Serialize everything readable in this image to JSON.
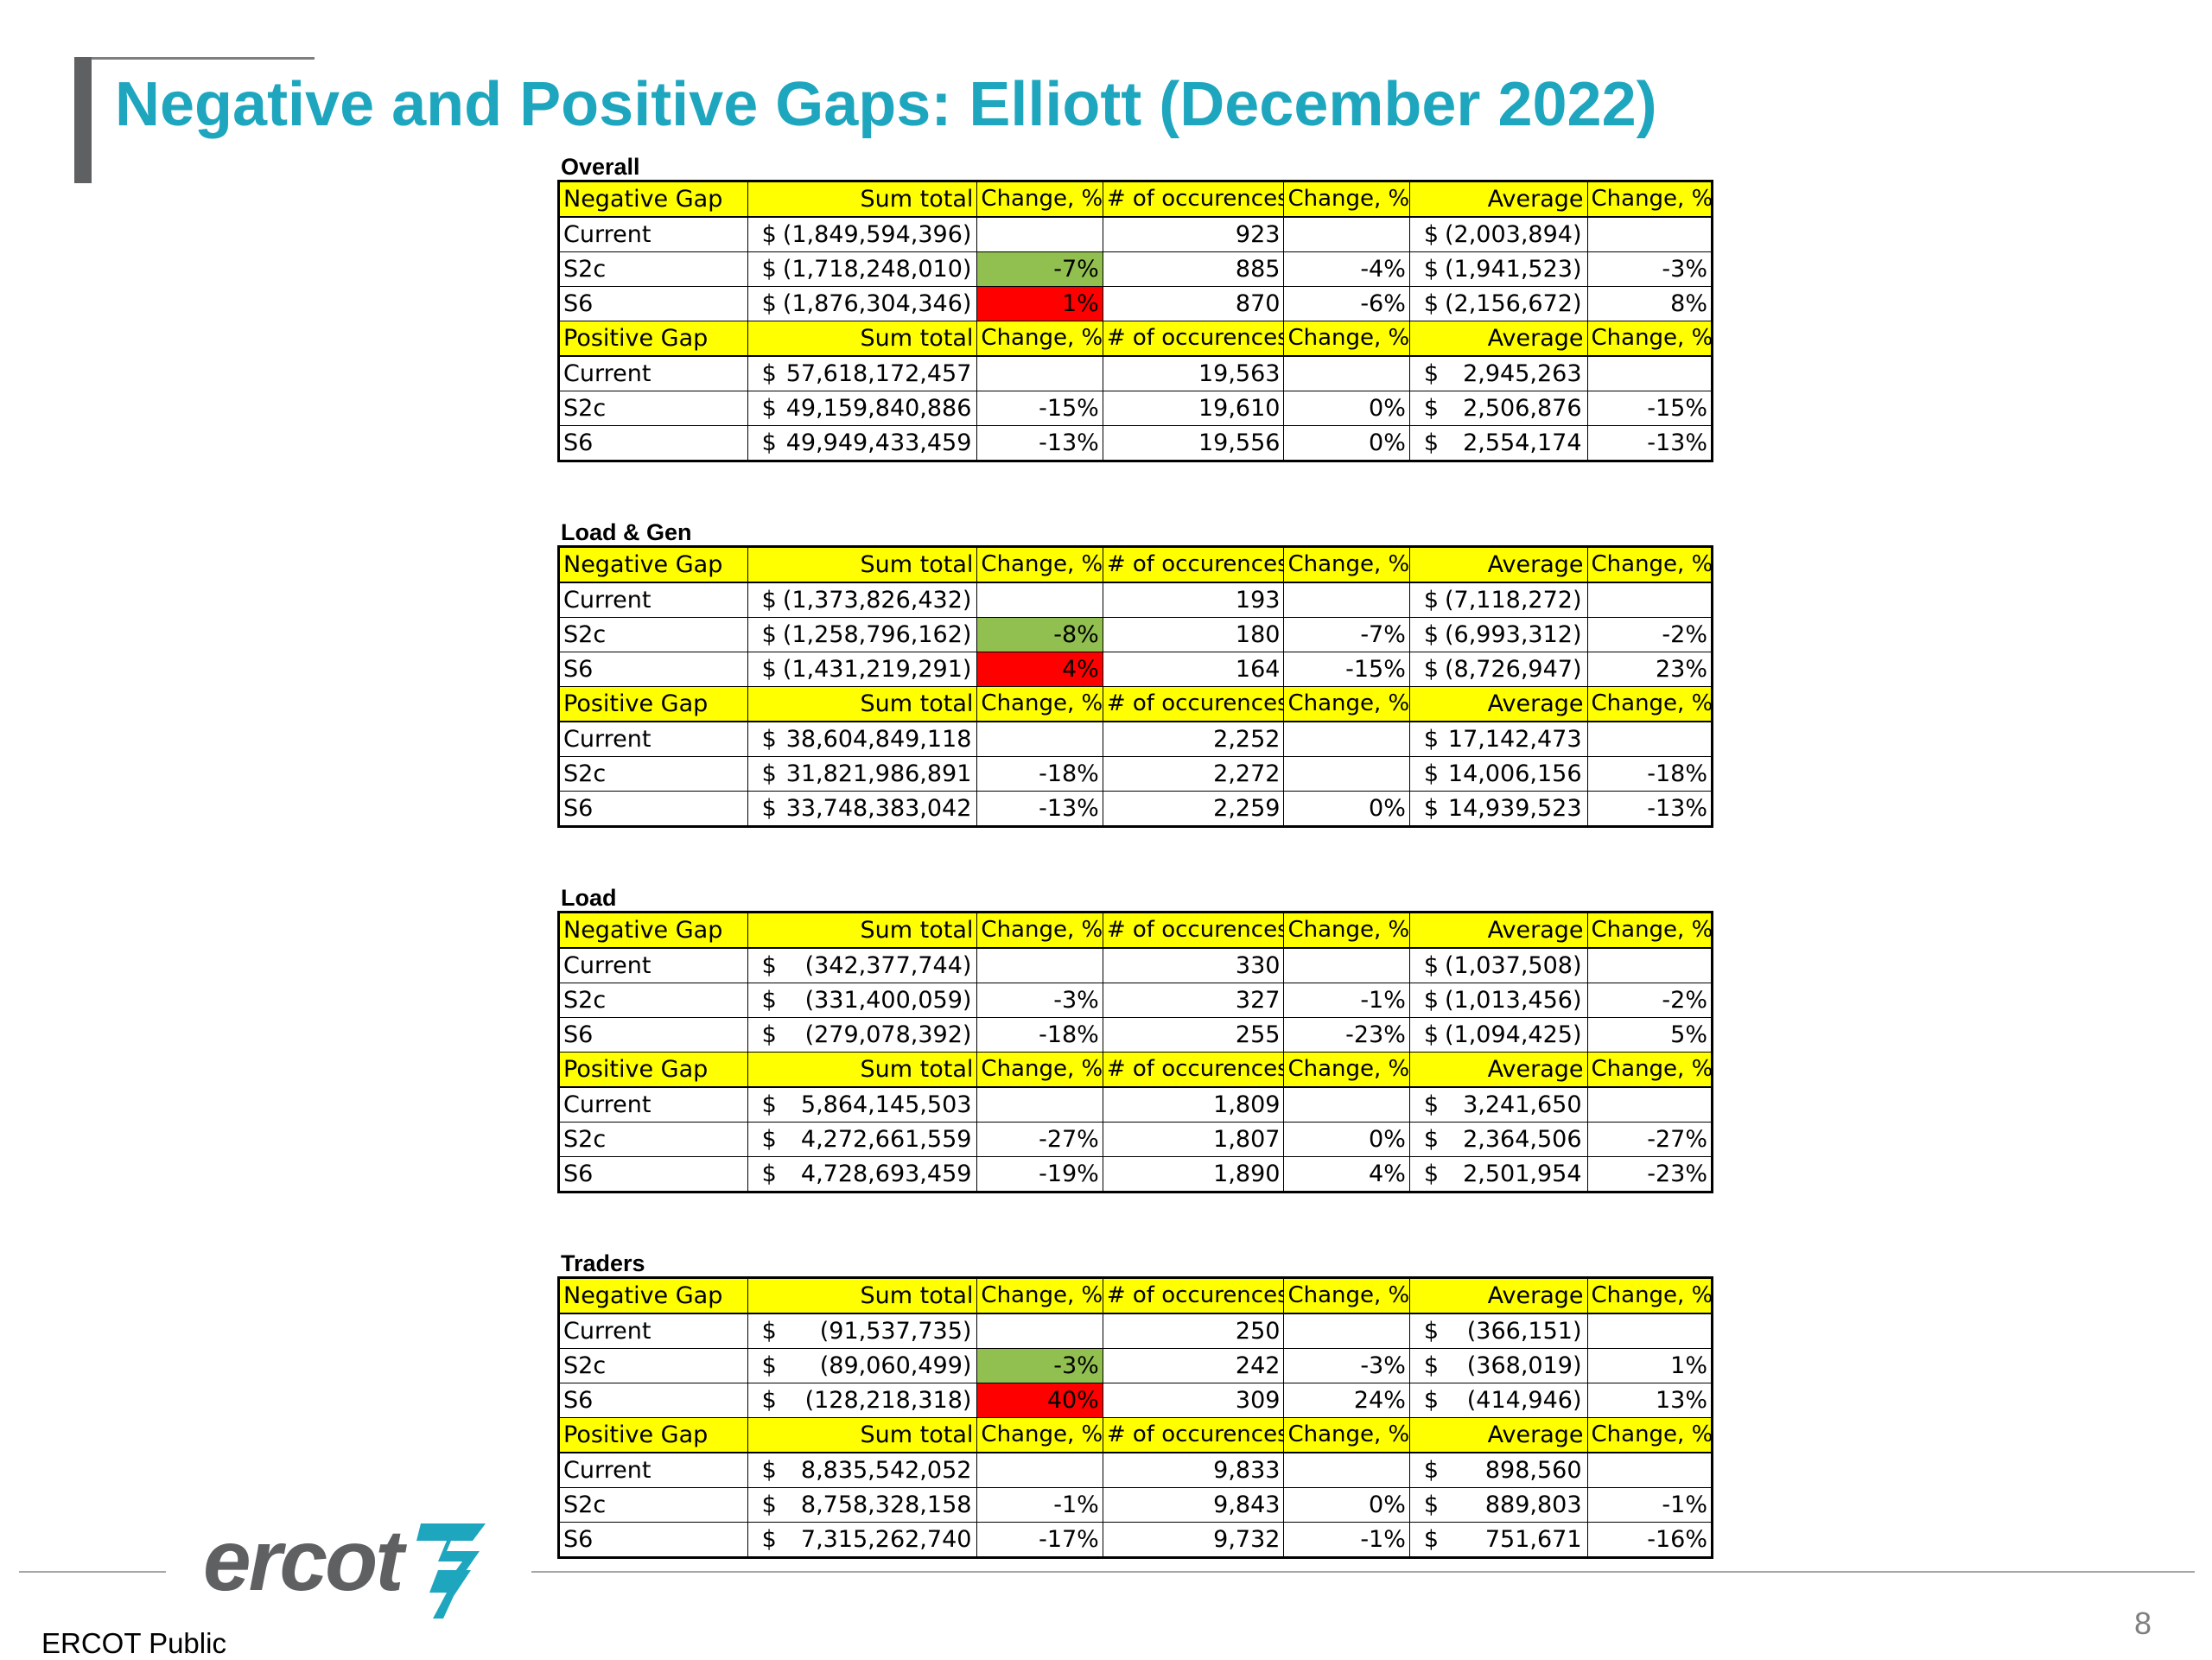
{
  "slide": {
    "title": "Negative and Positive Gaps: Elliott (December 2022)",
    "footer": "ERCOT Public",
    "page_number": "8",
    "logo_text": "ercot",
    "accent_color": "#1ea6bf"
  },
  "sections": [
    {
      "title": "Overall",
      "blocks": [
        {
          "header": [
            "Negative Gap",
            "Sum total",
            "Change, %",
            "# of occurences",
            "Change, %",
            "Average",
            "Change, %"
          ],
          "rows": [
            {
              "label": "Current",
              "sum": "(1,849,594,396)",
              "sum_ch": "",
              "sum_ch_color": "",
              "occ": "923",
              "occ_ch": "",
              "avg": "(2,003,894)",
              "avg_ch": ""
            },
            {
              "label": "S2c",
              "sum": "(1,718,248,010)",
              "sum_ch": "-7%",
              "sum_ch_color": "green",
              "occ": "885",
              "occ_ch": "-4%",
              "avg": "(1,941,523)",
              "avg_ch": "-3%"
            },
            {
              "label": "S6",
              "sum": "(1,876,304,346)",
              "sum_ch": "1%",
              "sum_ch_color": "red",
              "occ": "870",
              "occ_ch": "-6%",
              "avg": "(2,156,672)",
              "avg_ch": "8%"
            }
          ]
        },
        {
          "header": [
            "Positive Gap",
            "Sum total",
            "Change, %",
            "# of occurences",
            "Change, %",
            "Average",
            "Change, %"
          ],
          "rows": [
            {
              "label": "Current",
              "sum": "57,618,172,457",
              "sum_ch": "",
              "sum_ch_color": "",
              "occ": "19,563",
              "occ_ch": "",
              "avg": "2,945,263",
              "avg_ch": ""
            },
            {
              "label": "S2c",
              "sum": "49,159,840,886",
              "sum_ch": "-15%",
              "sum_ch_color": "",
              "occ": "19,610",
              "occ_ch": "0%",
              "avg": "2,506,876",
              "avg_ch": "-15%"
            },
            {
              "label": "S6",
              "sum": "49,949,433,459",
              "sum_ch": "-13%",
              "sum_ch_color": "",
              "occ": "19,556",
              "occ_ch": "0%",
              "avg": "2,554,174",
              "avg_ch": "-13%"
            }
          ]
        }
      ]
    },
    {
      "title": "Load & Gen",
      "blocks": [
        {
          "header": [
            "Negative Gap",
            "Sum total",
            "Change, %",
            "# of occurences",
            "Change, %",
            "Average",
            "Change, %"
          ],
          "rows": [
            {
              "label": "Current",
              "sum": "(1,373,826,432)",
              "sum_ch": "",
              "sum_ch_color": "",
              "occ": "193",
              "occ_ch": "",
              "avg": "(7,118,272)",
              "avg_ch": ""
            },
            {
              "label": "S2c",
              "sum": "(1,258,796,162)",
              "sum_ch": "-8%",
              "sum_ch_color": "green",
              "occ": "180",
              "occ_ch": "-7%",
              "avg": "(6,993,312)",
              "avg_ch": "-2%"
            },
            {
              "label": "S6",
              "sum": "(1,431,219,291)",
              "sum_ch": "4%",
              "sum_ch_color": "red",
              "occ": "164",
              "occ_ch": "-15%",
              "avg": "(8,726,947)",
              "avg_ch": "23%"
            }
          ]
        },
        {
          "header": [
            "Positive Gap",
            "Sum total",
            "Change, %",
            "# of occurences",
            "Change, %",
            "Average",
            "Change, %"
          ],
          "rows": [
            {
              "label": "Current",
              "sum": "38,604,849,118",
              "sum_ch": "",
              "sum_ch_color": "",
              "occ": "2,252",
              "occ_ch": "",
              "avg": "17,142,473",
              "avg_ch": ""
            },
            {
              "label": "S2c",
              "sum": "31,821,986,891",
              "sum_ch": "-18%",
              "sum_ch_color": "",
              "occ": "2,272",
              "occ_ch": "",
              "avg": "14,006,156",
              "avg_ch": "-18%"
            },
            {
              "label": "S6",
              "sum": "33,748,383,042",
              "sum_ch": "-13%",
              "sum_ch_color": "",
              "occ": "2,259",
              "occ_ch": "0%",
              "avg": "14,939,523",
              "avg_ch": "-13%"
            }
          ]
        }
      ]
    },
    {
      "title": "Load",
      "blocks": [
        {
          "header": [
            "Negative Gap",
            "Sum total",
            "Change, %",
            "# of occurences",
            "Change, %",
            "Average",
            "Change, %"
          ],
          "rows": [
            {
              "label": "Current",
              "sum": "(342,377,744)",
              "sum_ch": "",
              "sum_ch_color": "",
              "occ": "330",
              "occ_ch": "",
              "avg": "(1,037,508)",
              "avg_ch": ""
            },
            {
              "label": "S2c",
              "sum": "(331,400,059)",
              "sum_ch": "-3%",
              "sum_ch_color": "",
              "occ": "327",
              "occ_ch": "-1%",
              "avg": "(1,013,456)",
              "avg_ch": "-2%"
            },
            {
              "label": "S6",
              "sum": "(279,078,392)",
              "sum_ch": "-18%",
              "sum_ch_color": "",
              "occ": "255",
              "occ_ch": "-23%",
              "avg": "(1,094,425)",
              "avg_ch": "5%"
            }
          ]
        },
        {
          "header": [
            "Positive Gap",
            "Sum total",
            "Change, %",
            "# of occurences",
            "Change, %",
            "Average",
            "Change, %"
          ],
          "rows": [
            {
              "label": "Current",
              "sum": "5,864,145,503",
              "sum_ch": "",
              "sum_ch_color": "",
              "occ": "1,809",
              "occ_ch": "",
              "avg": "3,241,650",
              "avg_ch": ""
            },
            {
              "label": "S2c",
              "sum": "4,272,661,559",
              "sum_ch": "-27%",
              "sum_ch_color": "",
              "occ": "1,807",
              "occ_ch": "0%",
              "avg": "2,364,506",
              "avg_ch": "-27%"
            },
            {
              "label": "S6",
              "sum": "4,728,693,459",
              "sum_ch": "-19%",
              "sum_ch_color": "",
              "occ": "1,890",
              "occ_ch": "4%",
              "avg": "2,501,954",
              "avg_ch": "-23%"
            }
          ]
        }
      ]
    },
    {
      "title": "Traders",
      "blocks": [
        {
          "header": [
            "Negative Gap",
            "Sum total",
            "Change, %",
            "# of occurences",
            "Change, %",
            "Average",
            "Change, %"
          ],
          "rows": [
            {
              "label": "Current",
              "sum": "(91,537,735)",
              "sum_ch": "",
              "sum_ch_color": "",
              "occ": "250",
              "occ_ch": "",
              "avg": "(366,151)",
              "avg_ch": ""
            },
            {
              "label": "S2c",
              "sum": "(89,060,499)",
              "sum_ch": "-3%",
              "sum_ch_color": "green",
              "occ": "242",
              "occ_ch": "-3%",
              "avg": "(368,019)",
              "avg_ch": "1%"
            },
            {
              "label": "S6",
              "sum": "(128,218,318)",
              "sum_ch": "40%",
              "sum_ch_color": "red",
              "occ": "309",
              "occ_ch": "24%",
              "avg": "(414,946)",
              "avg_ch": "13%"
            }
          ]
        },
        {
          "header": [
            "Positive Gap",
            "Sum total",
            "Change, %",
            "# of occurences",
            "Change, %",
            "Average",
            "Change, %"
          ],
          "rows": [
            {
              "label": "Current",
              "sum": "8,835,542,052",
              "sum_ch": "",
              "sum_ch_color": "",
              "occ": "9,833",
              "occ_ch": "",
              "avg": "898,560",
              "avg_ch": ""
            },
            {
              "label": "S2c",
              "sum": "8,758,328,158",
              "sum_ch": "-1%",
              "sum_ch_color": "",
              "occ": "9,843",
              "occ_ch": "0%",
              "avg": "889,803",
              "avg_ch": "-1%"
            },
            {
              "label": "S6",
              "sum": "7,315,262,740",
              "sum_ch": "-17%",
              "sum_ch_color": "",
              "occ": "9,732",
              "occ_ch": "-1%",
              "avg": "751,671",
              "avg_ch": "-16%"
            }
          ]
        }
      ]
    }
  ],
  "currency_symbol": "$"
}
